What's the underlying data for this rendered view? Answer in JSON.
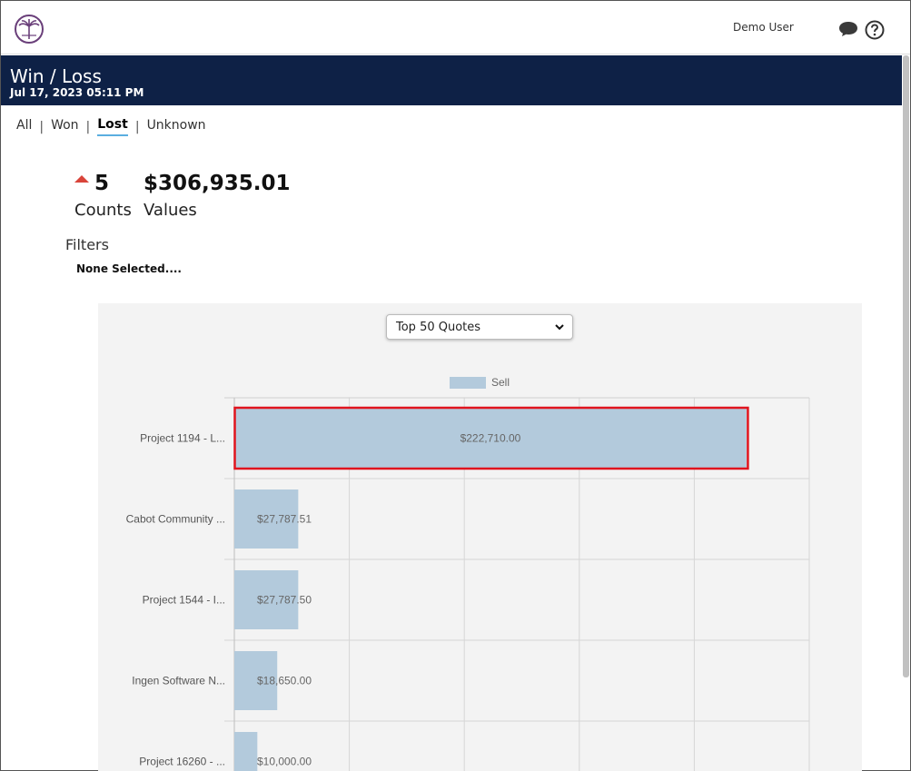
{
  "header": {
    "user_name": "Demo User",
    "title": "Win / Loss",
    "subtitle": "Jul 17, 2023 05:11 PM"
  },
  "tabs": [
    {
      "label": "All",
      "active": false
    },
    {
      "label": "Won",
      "active": false
    },
    {
      "label": "Lost",
      "active": true
    },
    {
      "label": "Unknown",
      "active": false
    }
  ],
  "stats": {
    "count_value": "5",
    "count_label": "Counts",
    "value_value": "$306,935.01",
    "value_label": "Values"
  },
  "filters": {
    "label": "Filters",
    "value": "None Selected...."
  },
  "dropdown": {
    "selected": "Top 50 Quotes"
  },
  "colors": {
    "banner": "#0e2146",
    "bar": "#b3cadc",
    "highlight": "#e0141e",
    "arrow": "#d9443a"
  },
  "chart_data": {
    "type": "bar",
    "orientation": "horizontal",
    "legend": [
      "Sell"
    ],
    "categories": [
      "Project 1194 - L...",
      "Cabot Community ...",
      "Project 1544 - I...",
      "Ingen Software N...",
      "Project 16260 - ..."
    ],
    "series": [
      {
        "name": "Sell",
        "values": [
          222710.0,
          27787.51,
          27787.5,
          18650.0,
          10000.0
        ],
        "labels": [
          "$222,710.00",
          "$27,787.51",
          "$27,787.50",
          "$18,650.00",
          "$10,000.00"
        ]
      }
    ],
    "xlim": [
      0,
      250000
    ],
    "grid": true,
    "legend_position": "top-center",
    "highlighted_index": 0
  }
}
